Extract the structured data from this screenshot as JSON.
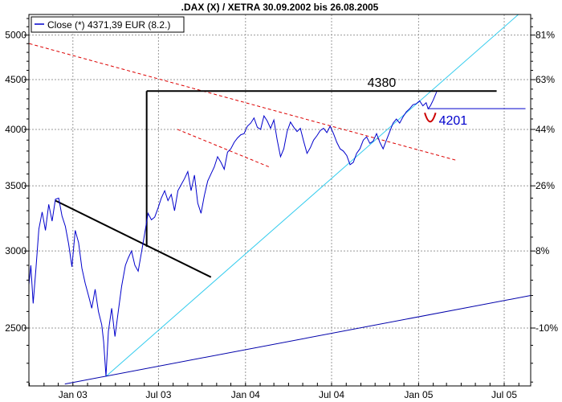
{
  "chart_data": {
    "type": "line",
    "title": ".DAX (X) / XETRA 30.09.2002 bis 26.08.2005",
    "xlabel": "",
    "ylabel": "",
    "yscale": "log",
    "ylim": [
      2180,
      5250
    ],
    "xlim": [
      "2002-09-30",
      "2005-08-26"
    ],
    "grid": true,
    "legend": {
      "position": "top-left",
      "entries": [
        "Close (*) 4371,39 EUR (8.2.)"
      ]
    },
    "y_ticks": [
      "5000",
      "4500",
      "4000",
      "3500",
      "3000",
      "2500"
    ],
    "y_ticks_right": [
      "81%",
      "63%",
      "44%",
      "26%",
      "8%",
      "-10%"
    ],
    "y_ticks_right_values": [
      5000,
      4500,
      4000,
      3500,
      3000,
      2500
    ],
    "x_ticks": [
      {
        "label": "Jan 03",
        "date": "2003-01-01"
      },
      {
        "label": "Jul 03",
        "date": "2003-07-01"
      },
      {
        "label": "Jan 04",
        "date": "2004-01-01"
      },
      {
        "label": "Jul 04",
        "date": "2004-07-01"
      },
      {
        "label": "Jan 05",
        "date": "2005-01-01"
      },
      {
        "label": "Jul 05",
        "date": "2005-07-01"
      }
    ],
    "series": [
      {
        "color": "#0000cc",
        "points": [
          [
            "2002-09-30",
            2770
          ],
          [
            "2002-10-04",
            2900
          ],
          [
            "2002-10-09",
            2650
          ],
          [
            "2002-10-15",
            2880
          ],
          [
            "2002-10-21",
            3160
          ],
          [
            "2002-10-28",
            3290
          ],
          [
            "2002-11-04",
            3150
          ],
          [
            "2002-11-11",
            3350
          ],
          [
            "2002-11-18",
            3220
          ],
          [
            "2002-11-25",
            3390
          ],
          [
            "2002-12-02",
            3400
          ],
          [
            "2002-12-09",
            3260
          ],
          [
            "2002-12-16",
            3180
          ],
          [
            "2002-12-23",
            3050
          ],
          [
            "2002-12-30",
            2890
          ],
          [
            "2003-01-06",
            3150
          ],
          [
            "2003-01-13",
            3060
          ],
          [
            "2003-01-20",
            2880
          ],
          [
            "2003-01-27",
            2780
          ],
          [
            "2003-02-03",
            2700
          ],
          [
            "2003-02-10",
            2620
          ],
          [
            "2003-02-17",
            2740
          ],
          [
            "2003-02-24",
            2600
          ],
          [
            "2003-03-03",
            2520
          ],
          [
            "2003-03-07",
            2420
          ],
          [
            "2003-03-12",
            2230
          ],
          [
            "2003-03-17",
            2480
          ],
          [
            "2003-03-24",
            2620
          ],
          [
            "2003-03-31",
            2450
          ],
          [
            "2003-04-07",
            2600
          ],
          [
            "2003-04-14",
            2760
          ],
          [
            "2003-04-22",
            2900
          ],
          [
            "2003-04-28",
            2950
          ],
          [
            "2003-05-05",
            3000
          ],
          [
            "2003-05-12",
            2900
          ],
          [
            "2003-05-19",
            2860
          ],
          [
            "2003-05-26",
            2990
          ],
          [
            "2003-06-02",
            3130
          ],
          [
            "2003-06-09",
            3280
          ],
          [
            "2003-06-16",
            3230
          ],
          [
            "2003-06-23",
            3250
          ],
          [
            "2003-06-30",
            3320
          ],
          [
            "2003-07-07",
            3400
          ],
          [
            "2003-07-14",
            3460
          ],
          [
            "2003-07-21",
            3380
          ],
          [
            "2003-07-28",
            3430
          ],
          [
            "2003-08-04",
            3300
          ],
          [
            "2003-08-11",
            3460
          ],
          [
            "2003-08-18",
            3510
          ],
          [
            "2003-08-25",
            3560
          ],
          [
            "2003-09-01",
            3620
          ],
          [
            "2003-09-08",
            3460
          ],
          [
            "2003-09-15",
            3590
          ],
          [
            "2003-09-22",
            3360
          ],
          [
            "2003-09-29",
            3280
          ],
          [
            "2003-10-06",
            3420
          ],
          [
            "2003-10-13",
            3540
          ],
          [
            "2003-10-20",
            3600
          ],
          [
            "2003-10-27",
            3660
          ],
          [
            "2003-11-03",
            3750
          ],
          [
            "2003-11-10",
            3700
          ],
          [
            "2003-11-17",
            3640
          ],
          [
            "2003-11-24",
            3790
          ],
          [
            "2003-12-01",
            3820
          ],
          [
            "2003-12-08",
            3880
          ],
          [
            "2003-12-15",
            3920
          ],
          [
            "2003-12-22",
            3950
          ],
          [
            "2003-12-29",
            3960
          ],
          [
            "2004-01-05",
            4030
          ],
          [
            "2004-01-12",
            4060
          ],
          [
            "2004-01-19",
            4110
          ],
          [
            "2004-01-26",
            4020
          ],
          [
            "2004-02-02",
            4000
          ],
          [
            "2004-02-09",
            4130
          ],
          [
            "2004-02-16",
            4080
          ],
          [
            "2004-02-23",
            4010
          ],
          [
            "2004-03-01",
            4090
          ],
          [
            "2004-03-08",
            3900
          ],
          [
            "2004-03-15",
            3750
          ],
          [
            "2004-03-22",
            3820
          ],
          [
            "2004-03-29",
            3980
          ],
          [
            "2004-04-05",
            4070
          ],
          [
            "2004-04-12",
            4020
          ],
          [
            "2004-04-19",
            3980
          ],
          [
            "2004-04-26",
            4010
          ],
          [
            "2004-05-03",
            3890
          ],
          [
            "2004-05-10",
            3780
          ],
          [
            "2004-05-17",
            3830
          ],
          [
            "2004-05-24",
            3900
          ],
          [
            "2004-05-31",
            3940
          ],
          [
            "2004-06-07",
            3990
          ],
          [
            "2004-06-14",
            4010
          ],
          [
            "2004-06-21",
            3970
          ],
          [
            "2004-06-28",
            4030
          ],
          [
            "2004-07-05",
            3960
          ],
          [
            "2004-07-12",
            3880
          ],
          [
            "2004-07-19",
            3820
          ],
          [
            "2004-07-26",
            3800
          ],
          [
            "2004-08-02",
            3760
          ],
          [
            "2004-08-09",
            3680
          ],
          [
            "2004-08-16",
            3700
          ],
          [
            "2004-08-23",
            3780
          ],
          [
            "2004-08-30",
            3820
          ],
          [
            "2004-09-06",
            3900
          ],
          [
            "2004-09-13",
            3930
          ],
          [
            "2004-09-20",
            3870
          ],
          [
            "2004-09-27",
            3890
          ],
          [
            "2004-10-04",
            3960
          ],
          [
            "2004-10-11",
            3880
          ],
          [
            "2004-10-18",
            3820
          ],
          [
            "2004-10-25",
            3900
          ],
          [
            "2004-11-01",
            3980
          ],
          [
            "2004-11-08",
            4060
          ],
          [
            "2004-11-15",
            4100
          ],
          [
            "2004-11-22",
            4060
          ],
          [
            "2004-11-29",
            4120
          ],
          [
            "2004-12-06",
            4170
          ],
          [
            "2004-12-13",
            4200
          ],
          [
            "2004-12-20",
            4240
          ],
          [
            "2004-12-27",
            4250
          ],
          [
            "2005-01-03",
            4280
          ],
          [
            "2005-01-10",
            4230
          ],
          [
            "2005-01-17",
            4260
          ],
          [
            "2005-01-21",
            4200
          ],
          [
            "2005-01-26",
            4230
          ],
          [
            "2005-02-01",
            4290
          ],
          [
            "2005-02-08",
            4371
          ]
        ]
      }
    ],
    "annotations": [
      {
        "text": "4380",
        "value": 4380
      },
      {
        "text": "4201",
        "value": 4201
      }
    ],
    "colors": {
      "series": "#0000cc",
      "uptrend_steep": "#33ccee",
      "uptrend_long": "#0000aa",
      "downtrend_channel": "#dd0000",
      "support_arc": "#cc0000",
      "resistance": "#000000",
      "level_4201": "#0000cc",
      "annotation_4380": "#000000",
      "annotation_4201": "#0000cc"
    }
  }
}
